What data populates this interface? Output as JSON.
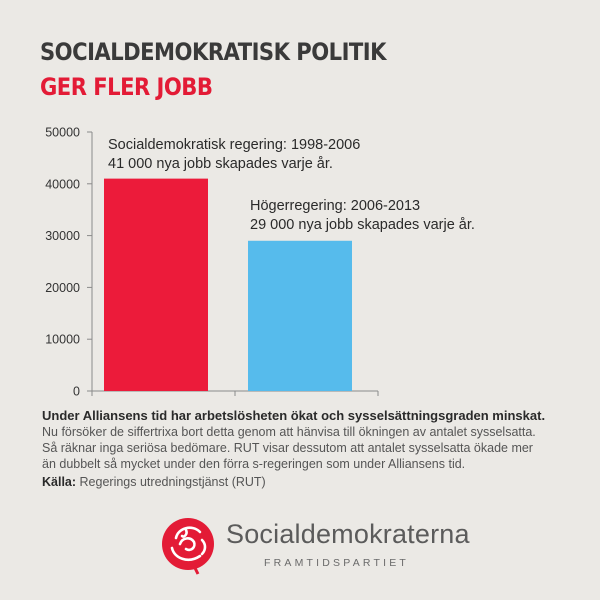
{
  "heading": {
    "line1": "SOCIALDEMOKRATISK POLITIK",
    "line2": "GER FLER JOBB"
  },
  "chart_data": {
    "type": "bar",
    "categories": [
      "Socialdemokratisk regering: 1998-2006",
      "Högerregering: 2006-2013"
    ],
    "values": [
      41000,
      29000
    ],
    "ylim": [
      0,
      50000
    ],
    "yticks": [
      0,
      10000,
      20000,
      30000,
      40000,
      50000
    ],
    "grid": false,
    "colors": [
      "#ec1b3a",
      "#56bbec"
    ],
    "annotations": [
      {
        "line1": "Socialdemokratisk regering: 1998-2006",
        "line2": "41 000 nya jobb skapades varje år."
      },
      {
        "line1": "Högerregering: 2006-2013",
        "line2": "29 000 nya jobb skapades varje år."
      }
    ]
  },
  "note": {
    "bold": "Under Alliansens tid har arbetslösheten ökat och sysselsättningsgraden minskat.",
    "line1": "Nu försöker de siffertrixa bort detta genom att hänvisa till ökningen av antalet sysselsatta.",
    "line2": "Så räknar inga seriösa bedömare. RUT visar dessutom att antalet sysselsatta ökade mer",
    "line3": "än dubbelt så mycket under den förra s-regeringen som under Alliansens tid.",
    "source_label": "Källa:",
    "source_text": "Regerings utredningstjänst (RUT)"
  },
  "logo": {
    "name": "Socialdemokraterna",
    "tagline": "FRAMTIDSPARTIET",
    "icon": "rose-icon",
    "color": "#e31b36"
  }
}
